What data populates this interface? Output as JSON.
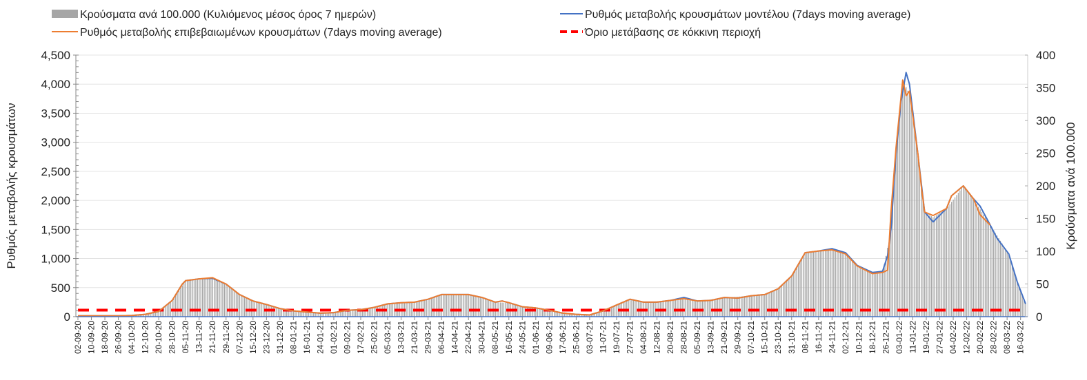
{
  "chart_data": {
    "type": "bar+line",
    "legend": {
      "position": "top",
      "items": [
        {
          "label": "Κρούσματα ανά 100.000 (Κυλιόμενος μέσος όρος 7 ημερών)",
          "kind": "bar",
          "color": "#a6a6a6"
        },
        {
          "label": "Ρυθμός μεταβολής επιβεβαιωμένων κρουσμάτων (7days moving average)",
          "kind": "line",
          "color": "#ed7d31"
        },
        {
          "label": "Ρυθμός μεταβολής κρουσμάτων μοντέλου (7days moving average)",
          "kind": "line",
          "color": "#4472c4"
        },
        {
          "label": "Όριο μετάβασης σε κόκκινη περιοχή",
          "kind": "dashed",
          "color": "#ff0000"
        }
      ]
    },
    "ylabel_left": "Ρυθμός μεταβολής κρουσμάτων",
    "ylabel_right": "Κρούσματα ανά 100.000",
    "ylim_left": [
      0,
      4500
    ],
    "yticks_left": [
      "0",
      "500",
      "1,000",
      "1,500",
      "2,000",
      "2,500",
      "3,000",
      "3,500",
      "4,000",
      "4,500"
    ],
    "ylim_right": [
      0,
      400
    ],
    "yticks_right": [
      "0",
      "50",
      "100",
      "150",
      "200",
      "250",
      "300",
      "350",
      "400"
    ],
    "grid": true,
    "x_day_span": 563,
    "x_label_step_days": 8,
    "xticks": [
      "02-09-20",
      "10-09-20",
      "18-09-20",
      "26-09-20",
      "04-10-20",
      "12-10-20",
      "20-10-20",
      "28-10-20",
      "05-11-20",
      "13-11-20",
      "21-11-20",
      "29-11-20",
      "07-12-20",
      "15-12-20",
      "23-12-20",
      "31-12-20",
      "08-01-21",
      "16-01-21",
      "24-01-21",
      "01-02-21",
      "09-02-21",
      "17-02-21",
      "25-02-21",
      "05-03-21",
      "13-03-21",
      "21-03-21",
      "29-03-21",
      "06-04-21",
      "14-04-21",
      "22-04-21",
      "30-04-21",
      "08-05-21",
      "16-05-21",
      "24-05-21",
      "01-06-21",
      "09-06-21",
      "17-06-21",
      "25-06-21",
      "03-07-21",
      "11-07-21",
      "19-07-21",
      "27-07-21",
      "04-08-21",
      "12-08-21",
      "20-08-21",
      "28-08-21",
      "05-09-21",
      "13-09-21",
      "21-09-21",
      "29-09-21",
      "07-10-21",
      "15-10-21",
      "23-10-21",
      "31-10-21",
      "08-11-21",
      "16-11-21",
      "24-11-21",
      "02-12-21",
      "10-12-21",
      "18-12-21",
      "26-12-21",
      "03-01-22",
      "11-01-22",
      "19-01-22",
      "27-01-22",
      "04-02-22",
      "12-02-22",
      "20-02-22",
      "28-02-22",
      "08-03-22",
      "16-03-22"
    ],
    "threshold_per_100k": 10,
    "series": [
      {
        "name": "cases_per_100k",
        "axis": "right",
        "points_day_value": [
          [
            0,
            1
          ],
          [
            24,
            1
          ],
          [
            40,
            3
          ],
          [
            48,
            8
          ],
          [
            56,
            25
          ],
          [
            64,
            55
          ],
          [
            80,
            58
          ],
          [
            88,
            50
          ],
          [
            96,
            34
          ],
          [
            104,
            24
          ],
          [
            112,
            19
          ],
          [
            120,
            13
          ],
          [
            136,
            7
          ],
          [
            144,
            5
          ],
          [
            160,
            10
          ],
          [
            176,
            14
          ],
          [
            184,
            20
          ],
          [
            200,
            22
          ],
          [
            208,
            27
          ],
          [
            216,
            34
          ],
          [
            232,
            34
          ],
          [
            240,
            29
          ],
          [
            248,
            22
          ],
          [
            256,
            21
          ],
          [
            264,
            15
          ],
          [
            280,
            10
          ],
          [
            296,
            4
          ],
          [
            304,
            3
          ],
          [
            312,
            9
          ],
          [
            320,
            18
          ],
          [
            328,
            27
          ],
          [
            336,
            22
          ],
          [
            352,
            25
          ],
          [
            360,
            29
          ],
          [
            368,
            24
          ],
          [
            384,
            29
          ],
          [
            400,
            32
          ],
          [
            408,
            34
          ],
          [
            416,
            43
          ],
          [
            424,
            62
          ],
          [
            432,
            98
          ],
          [
            440,
            100
          ],
          [
            448,
            104
          ],
          [
            456,
            98
          ],
          [
            463,
            78
          ],
          [
            472,
            67
          ],
          [
            478,
            68
          ],
          [
            483,
            130
          ],
          [
            486,
            250
          ],
          [
            490,
            362
          ],
          [
            494,
            340
          ],
          [
            499,
            250
          ],
          [
            503,
            160
          ],
          [
            508,
            152
          ],
          [
            516,
            165
          ],
          [
            526,
            200
          ],
          [
            532,
            180
          ],
          [
            542,
            140
          ],
          [
            553,
            96
          ],
          [
            558,
            55
          ],
          [
            563,
            20
          ]
        ]
      },
      {
        "name": "model_rate",
        "axis": "left",
        "points_day_value": [
          [
            0,
            15
          ],
          [
            24,
            15
          ],
          [
            32,
            20
          ],
          [
            40,
            40
          ],
          [
            48,
            90
          ],
          [
            56,
            280
          ],
          [
            62,
            560
          ],
          [
            64,
            620
          ],
          [
            72,
            650
          ],
          [
            80,
            660
          ],
          [
            88,
            560
          ],
          [
            96,
            380
          ],
          [
            104,
            270
          ],
          [
            112,
            210
          ],
          [
            120,
            140
          ],
          [
            128,
            100
          ],
          [
            136,
            80
          ],
          [
            144,
            60
          ],
          [
            152,
            70
          ],
          [
            160,
            110
          ],
          [
            168,
            120
          ],
          [
            176,
            160
          ],
          [
            184,
            220
          ],
          [
            192,
            240
          ],
          [
            200,
            250
          ],
          [
            208,
            300
          ],
          [
            216,
            380
          ],
          [
            224,
            380
          ],
          [
            232,
            380
          ],
          [
            240,
            330
          ],
          [
            248,
            250
          ],
          [
            252,
            270
          ],
          [
            256,
            240
          ],
          [
            264,
            170
          ],
          [
            272,
            150
          ],
          [
            280,
            110
          ],
          [
            288,
            60
          ],
          [
            296,
            40
          ],
          [
            304,
            30
          ],
          [
            312,
            100
          ],
          [
            320,
            200
          ],
          [
            328,
            300
          ],
          [
            336,
            250
          ],
          [
            344,
            250
          ],
          [
            352,
            280
          ],
          [
            360,
            330
          ],
          [
            368,
            270
          ],
          [
            376,
            280
          ],
          [
            384,
            330
          ],
          [
            392,
            320
          ],
          [
            400,
            360
          ],
          [
            408,
            380
          ],
          [
            416,
            480
          ],
          [
            424,
            700
          ],
          [
            432,
            1100
          ],
          [
            440,
            1130
          ],
          [
            448,
            1170
          ],
          [
            456,
            1100
          ],
          [
            463,
            880
          ],
          [
            472,
            760
          ],
          [
            478,
            780
          ],
          [
            481,
            1050
          ],
          [
            483,
            1500
          ],
          [
            486,
            2800
          ],
          [
            489,
            3700
          ],
          [
            492,
            4200
          ],
          [
            494,
            4000
          ],
          [
            499,
            2800
          ],
          [
            501,
            2300
          ],
          [
            503,
            1800
          ],
          [
            508,
            1630
          ],
          [
            516,
            1860
          ],
          [
            519,
            2080
          ],
          [
            526,
            2250
          ],
          [
            532,
            2030
          ],
          [
            536,
            1900
          ],
          [
            542,
            1575
          ],
          [
            546,
            1350
          ],
          [
            553,
            1080
          ],
          [
            558,
            600
          ],
          [
            563,
            220
          ]
        ]
      },
      {
        "name": "confirmed_rate",
        "axis": "left",
        "points_day_value": [
          [
            0,
            15
          ],
          [
            24,
            15
          ],
          [
            32,
            20
          ],
          [
            40,
            40
          ],
          [
            48,
            90
          ],
          [
            56,
            280
          ],
          [
            62,
            560
          ],
          [
            64,
            620
          ],
          [
            72,
            650
          ],
          [
            80,
            670
          ],
          [
            88,
            560
          ],
          [
            96,
            380
          ],
          [
            104,
            270
          ],
          [
            112,
            210
          ],
          [
            120,
            140
          ],
          [
            128,
            100
          ],
          [
            136,
            80
          ],
          [
            144,
            60
          ],
          [
            152,
            70
          ],
          [
            160,
            110
          ],
          [
            168,
            120
          ],
          [
            176,
            160
          ],
          [
            184,
            220
          ],
          [
            192,
            240
          ],
          [
            200,
            250
          ],
          [
            208,
            300
          ],
          [
            216,
            380
          ],
          [
            224,
            380
          ],
          [
            232,
            380
          ],
          [
            240,
            330
          ],
          [
            248,
            250
          ],
          [
            252,
            270
          ],
          [
            256,
            240
          ],
          [
            264,
            170
          ],
          [
            272,
            150
          ],
          [
            280,
            110
          ],
          [
            288,
            60
          ],
          [
            296,
            40
          ],
          [
            304,
            30
          ],
          [
            312,
            100
          ],
          [
            320,
            200
          ],
          [
            328,
            300
          ],
          [
            336,
            250
          ],
          [
            344,
            250
          ],
          [
            352,
            280
          ],
          [
            360,
            310
          ],
          [
            368,
            270
          ],
          [
            376,
            280
          ],
          [
            384,
            330
          ],
          [
            392,
            320
          ],
          [
            400,
            360
          ],
          [
            408,
            380
          ],
          [
            416,
            480
          ],
          [
            424,
            700
          ],
          [
            432,
            1100
          ],
          [
            440,
            1130
          ],
          [
            448,
            1150
          ],
          [
            456,
            1080
          ],
          [
            463,
            870
          ],
          [
            472,
            740
          ],
          [
            478,
            760
          ],
          [
            481,
            800
          ],
          [
            483,
            1800
          ],
          [
            486,
            2900
          ],
          [
            490,
            4070
          ],
          [
            492,
            3800
          ],
          [
            494,
            3880
          ],
          [
            499,
            2800
          ],
          [
            501,
            2250
          ],
          [
            503,
            1800
          ],
          [
            508,
            1740
          ],
          [
            516,
            1860
          ],
          [
            519,
            2080
          ],
          [
            526,
            2250
          ],
          [
            532,
            2030
          ],
          [
            536,
            1750
          ],
          [
            542,
            1575
          ]
        ]
      }
    ]
  }
}
